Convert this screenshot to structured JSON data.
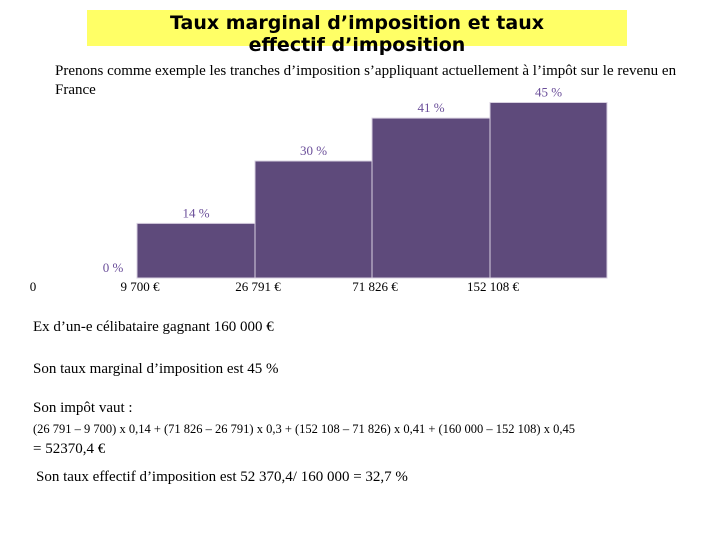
{
  "title": "Taux marginal d’imposition et taux effectif d’imposition",
  "intro": "Prenons comme exemple les tranches d’imposition s’appliquant actuellement à l’impôt sur le revenu en France",
  "chart_data": {
    "type": "step",
    "categories": [
      "0",
      "9 700 €",
      "26 791 €",
      "71 826 €",
      "152 108 €"
    ],
    "values": [
      0,
      14,
      30,
      41,
      45
    ],
    "value_labels": [
      "0 %",
      "14 %",
      "30 %",
      "41 %",
      "45 %"
    ],
    "color": "#5e4a7b"
  },
  "example": "Ex d’un-e célibataire gagnant 160 000 €",
  "marginal": "Son taux marginal d’imposition est 45 %",
  "tax_heading": "Son impôt vaut :",
  "formula": "(26 791 – 9 700) x 0,14 + (71 826 – 26 791) x 0,3 + (152 108 – 71 826) x 0,41 + (160 000 – 152 108) x 0,45",
  "result": "= 52370,4 €",
  "effective": "Son taux effectif d’imposition est 52 370,4/ 160 000 = 32,7 %"
}
